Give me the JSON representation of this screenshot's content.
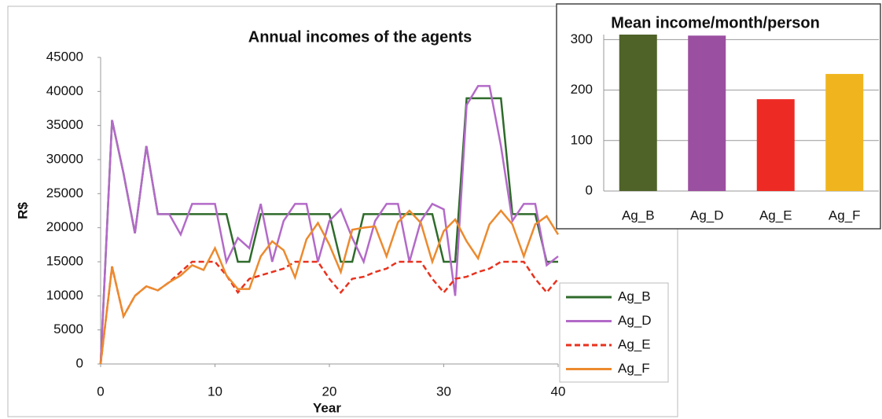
{
  "chart_data": [
    {
      "type": "line",
      "title": "Annual incomes of the agents",
      "x_label": "Year",
      "y_label": "R$",
      "x": [
        0,
        1,
        2,
        3,
        4,
        5,
        6,
        7,
        8,
        9,
        10,
        11,
        12,
        13,
        14,
        15,
        16,
        17,
        18,
        19,
        20,
        21,
        22,
        23,
        24,
        25,
        26,
        27,
        28,
        29,
        30,
        31,
        32,
        33,
        34,
        35,
        36,
        37,
        38,
        39,
        40
      ],
      "xlim": [
        0,
        40
      ],
      "xticks": [
        0,
        10,
        20,
        30,
        40
      ],
      "ylim": [
        0,
        45000
      ],
      "yticks": [
        0,
        5000,
        10000,
        15000,
        20000,
        25000,
        30000,
        35000,
        40000,
        45000
      ],
      "grid": false,
      "legend": "right",
      "series": [
        {
          "name": "Ag_B",
          "color": "#2e6b2a",
          "values": [
            0,
            35800,
            28000,
            19200,
            32000,
            22000,
            22000,
            22000,
            22000,
            22000,
            22000,
            22000,
            15000,
            15000,
            22000,
            22000,
            22000,
            22000,
            22000,
            22000,
            22000,
            15000,
            15000,
            22000,
            22000,
            22000,
            22000,
            22000,
            22000,
            22000,
            15000,
            15000,
            39000,
            39000,
            39000,
            39000,
            22000,
            22000,
            22000,
            15000,
            15000
          ]
        },
        {
          "name": "Ag_D",
          "color": "#b36ac8",
          "values": [
            0,
            35800,
            28000,
            19200,
            32000,
            22000,
            22000,
            19000,
            23500,
            23500,
            23500,
            15000,
            18500,
            17000,
            23500,
            15000,
            21000,
            23500,
            23500,
            15000,
            21000,
            22700,
            18500,
            15000,
            21000,
            23500,
            23500,
            15000,
            21000,
            23500,
            22700,
            10000,
            38000,
            40800,
            40800,
            32000,
            21000,
            23500,
            23500,
            14500,
            15800
          ]
        },
        {
          "name": "Ag_E",
          "color": "#e8321e",
          "dashed": true,
          "values": [
            0,
            14300,
            7000,
            10000,
            11400,
            10800,
            12000,
            13500,
            15000,
            15000,
            15000,
            13000,
            10500,
            12500,
            13000,
            13500,
            14000,
            15000,
            15000,
            15000,
            12500,
            10500,
            12500,
            12800,
            13500,
            14000,
            15000,
            15000,
            15000,
            12500,
            10500,
            12500,
            12800,
            13500,
            14000,
            15000,
            15000,
            15000,
            12500,
            10500,
            12500
          ]
        },
        {
          "name": "Ag_F",
          "color": "#ec8a2e",
          "values": [
            0,
            14300,
            7000,
            10000,
            11400,
            10800,
            12000,
            13000,
            14500,
            13800,
            17000,
            13000,
            11000,
            11000,
            15800,
            18000,
            16700,
            12700,
            18300,
            20700,
            17500,
            13500,
            19700,
            20000,
            20200,
            15800,
            20800,
            22500,
            20700,
            15000,
            19500,
            21200,
            18000,
            15500,
            20500,
            22500,
            20500,
            15800,
            20500,
            21700,
            19000
          ]
        }
      ]
    },
    {
      "type": "bar",
      "title": "Mean income/month/person",
      "categories": [
        "Ag_B",
        "Ag_D",
        "Ag_E",
        "Ag_F"
      ],
      "values": [
        310,
        308,
        182,
        232
      ],
      "colors": [
        "#4f6228",
        "#9b4fa0",
        "#ee2a24",
        "#f0b51e"
      ],
      "ylim": [
        0,
        310
      ],
      "yticks": [
        0,
        100,
        200,
        300
      ],
      "grid": true
    }
  ]
}
